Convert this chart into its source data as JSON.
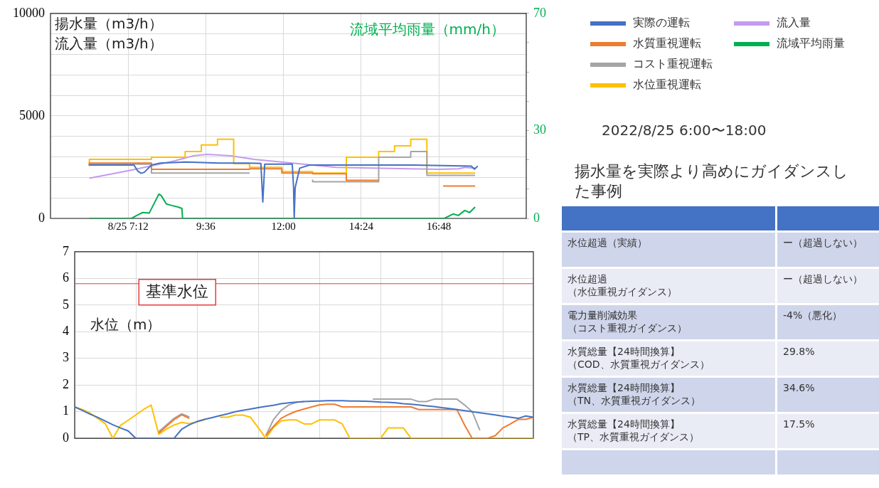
{
  "chart_data": [
    {
      "type": "line",
      "ylabel": "揚水量（m3/h）流入量（m3/h）",
      "y2label": "流域平均雨量（mm/h）",
      "xlim": [
        4.8,
        19.5
      ],
      "xticks": [
        {
          "value": 7.2,
          "label": "8/25 7:12"
        },
        {
          "value": 9.6,
          "label": "9:36"
        },
        {
          "value": 12,
          "label": "12:00"
        },
        {
          "value": 14.4,
          "label": "14:24"
        },
        {
          "value": 16.8,
          "label": "16:48"
        }
      ],
      "ylim": [
        0,
        10000
      ],
      "yticks": [
        0,
        {
          "value": 1000,
          "label": null
        },
        {
          "value": 2000,
          "label": null
        },
        {
          "value": 3000,
          "label": null
        },
        {
          "value": 4000,
          "label": null
        },
        5000,
        {
          "value": 6000,
          "label": null
        },
        {
          "value": 7000,
          "label": null
        },
        {
          "value": 8000,
          "label": null
        },
        {
          "value": 9000,
          "label": null
        },
        10000
      ],
      "y2lim": [
        0,
        70
      ],
      "y2ticks": [
        0,
        {
          "value": 10,
          "label": null
        },
        {
          "value": 20,
          "label": null
        },
        30,
        {
          "value": 40,
          "label": null
        },
        {
          "value": 50,
          "label": null
        },
        {
          "value": 60,
          "label": null
        },
        70
      ],
      "grid": true,
      "legend": "right",
      "marker": "none",
      "line_style": "solid",
      "series": [
        {
          "name": "実際の運転",
          "color": "#4472c4",
          "x": [
            6,
            7.38,
            7.5,
            7.6,
            7.7,
            7.92,
            8.19,
            9,
            10,
            10.9,
            11.3,
            11.36,
            11.42,
            12.27,
            12.31,
            12.33,
            12.36,
            12.5,
            12.8,
            14,
            16,
            17.8,
            17.9,
            18
          ],
          "values": [
            2600,
            2600,
            2300,
            2200,
            2250,
            2600,
            2700,
            2750,
            2700,
            2700,
            2680,
            800,
            2650,
            2650,
            1500,
            0,
            1500,
            2450,
            2600,
            2600,
            2600,
            2550,
            2400,
            2550
          ]
        },
        {
          "name": "水質重視運転",
          "type": "step",
          "color": "#ed7d31",
          "x": [
            6,
            7.92,
            10.95,
            11.95,
            12.9,
            13.94,
            14.94,
            15.93,
            16.93,
            17.92
          ],
          "values": [
            2560,
            2700,
            2390,
            2420,
            2210,
            2180,
            1860,
            null,
            1580,
            1580
          ]
        },
        {
          "name": "コスト重視運転",
          "type": "step",
          "color": "#a5a5a5",
          "x": [
            6,
            7.92,
            10.95,
            11.95,
            12.9,
            14.94,
            15.93,
            16.43,
            16.93,
            17.92
          ],
          "values": [
            2560,
            2650,
            2210,
            null,
            1890,
            1790,
            2980,
            3260,
            2100,
            2100
          ]
        },
        {
          "name": "水位重視運転",
          "type": "step",
          "color": "#ffc000",
          "x": [
            6,
            7.92,
            8.96,
            9.46,
            9.96,
            10.46,
            10.95,
            11.95,
            12.9,
            13.94,
            14.94,
            15.43,
            15.93,
            16.43,
            16.93,
            17.92
          ],
          "values": [
            2600,
            2880,
            2980,
            3260,
            3580,
            3860,
            2670,
            2490,
            2280,
            2210,
            2980,
            3260,
            3540,
            3860,
            2210,
            2210
          ]
        },
        {
          "name": "流入量",
          "color": "#c39bef",
          "x": [
            6,
            7.29,
            8.65,
            9.2,
            9.64,
            10.37,
            11.09,
            12.27,
            13.62,
            14.98,
            16.79,
            17.42,
            17.6,
            17.92
          ],
          "values": [
            1960,
            2350,
            2810,
            3050,
            3120,
            3050,
            2880,
            2700,
            2490,
            2450,
            2390,
            2420,
            2490,
            2450
          ]
        },
        {
          "name": "流域平均雨量",
          "color": "#00b050",
          "axis": "y2",
          "x": [
            6,
            7.3,
            7.55,
            7.65,
            7.85,
            7.97,
            8.15,
            8.22,
            8.38,
            8.55,
            8.74,
            8.86,
            8.88,
            16.97,
            17.24,
            17.4,
            17.6,
            17.75,
            17.92
          ],
          "values": [
            0,
            0,
            1.5,
            2.0,
            1.8,
            4.4,
            8.3,
            7.8,
            4.9,
            4.4,
            3.9,
            3.4,
            0,
            0,
            1.5,
            1.0,
            2.7,
            2.0,
            3.9
          ]
        }
      ]
    },
    {
      "type": "line",
      "ylabel": "水位（m）",
      "ylim": [
        0,
        7
      ],
      "yticks": [
        0,
        1,
        2,
        3,
        4,
        5,
        6,
        7
      ],
      "tick_labels": "y",
      "grid": true,
      "marker": "none",
      "line_style": "solid",
      "categories": [
        null,
        null,
        null,
        null,
        null,
        null,
        null,
        null,
        null,
        null,
        null,
        null,
        null,
        null,
        null,
        null,
        null,
        null,
        null,
        null,
        null,
        null,
        null,
        null,
        null,
        null,
        null,
        null,
        null,
        null,
        null,
        null,
        null,
        null,
        null,
        null,
        null,
        null,
        null,
        null,
        null,
        null,
        null,
        null,
        null,
        null,
        null,
        null,
        null,
        null,
        null,
        null,
        null,
        null,
        null,
        null,
        null,
        null,
        null,
        null,
        null
      ],
      "ref_lines": [
        {
          "axis": "y",
          "value": 5.8,
          "label": "基準水位",
          "color": "#e03c3c"
        }
      ],
      "series": [
        {
          "color": "#4472c4",
          "values": [
            1.18,
            1.05,
            0.91,
            0.79,
            0.65,
            0.51,
            0.39,
            0.28,
            0,
            0,
            0,
            0,
            0,
            0,
            0.34,
            0.51,
            0.63,
            0.71,
            0.78,
            0.85,
            0.92,
            1.0,
            1.05,
            1.1,
            1.15,
            1.2,
            1.24,
            1.3,
            1.33,
            1.36,
            1.38,
            1.39,
            1.4,
            1.41,
            1.41,
            1.41,
            1.4,
            1.4,
            1.39,
            1.38,
            1.36,
            1.35,
            1.33,
            1.3,
            1.28,
            1.25,
            1.22,
            1.19,
            1.15,
            1.12,
            1.08,
            1.04,
            1.0,
            0.96,
            0.92,
            0.88,
            0.83,
            0.79,
            0.75,
            0.84,
            0.79
          ]
        },
        {
          "color": "#ed7d31",
          "values": [
            null,
            null,
            null,
            null,
            null,
            null,
            null,
            null,
            null,
            null,
            null,
            0.2,
            0.45,
            0.7,
            0.88,
            0.75,
            null,
            null,
            null,
            null,
            null,
            null,
            null,
            null,
            null,
            0.1,
            0.45,
            0.75,
            0.9,
            1.02,
            1.1,
            1.18,
            1.25,
            1.28,
            1.28,
            1.18,
            1.18,
            1.18,
            1.18,
            1.18,
            1.18,
            1.18,
            1.18,
            1.18,
            1.18,
            1.08,
            1.08,
            1.08,
            1.08,
            1.08,
            1.08,
            0.5,
            0,
            0,
            0,
            0.1,
            0.39,
            0.54,
            0.71,
            0.71,
            0.79
          ]
        },
        {
          "color": "#a5a5a5",
          "values": [
            null,
            null,
            null,
            null,
            null,
            null,
            null,
            null,
            null,
            null,
            null,
            0.25,
            0.5,
            0.75,
            0.92,
            0.8,
            null,
            null,
            null,
            null,
            null,
            null,
            null,
            null,
            null,
            0.1,
            0.7,
            1.05,
            1.25,
            1.35,
            1.38,
            null,
            null,
            null,
            null,
            null,
            null,
            null,
            null,
            1.47,
            1.47,
            1.47,
            1.47,
            1.47,
            1.47,
            1.38,
            1.38,
            1.47,
            1.47,
            1.47,
            1.47,
            1.25,
            1.0,
            0.3,
            null,
            null,
            null,
            null,
            null,
            null,
            null
          ]
        },
        {
          "color": "#ffc000",
          "values": [
            1.18,
            1.08,
            0.95,
            0.75,
            0.55,
            0,
            0.49,
            0.68,
            0.88,
            1.08,
            1.25,
            0.15,
            0.35,
            0.5,
            0.6,
            0.55,
            0.62,
            0.7,
            null,
            0.79,
            0.79,
            0.87,
            0.87,
            0.79,
            0.4,
            0,
            0.4,
            0.65,
            0.69,
            0.69,
            0.54,
            0.54,
            0.69,
            0.69,
            0.69,
            0.54,
            0,
            0,
            0,
            0,
            0,
            0.39,
            0.39,
            0.39,
            0,
            0,
            0,
            0,
            0,
            0,
            0,
            0,
            0,
            0,
            0,
            0,
            0,
            0,
            0,
            0,
            0
          ]
        }
      ]
    },
    {
      "type": "other",
      "subtitle": "2022/8/25 6:00〜18:00",
      "title": "揚水量を実際より高めにガイダンスした事例",
      "annotations": [
        "水位超過（実績）",
        "ー（超過しない）",
        "水位超過（水位重視ガイダンス）",
        "ー（超過しない）",
        "電力量削減効果（コスト重視ガイダンス）",
        "-4%（悪化）",
        "水質総量【24時間換算】（COD、水質重視ガイダンス）",
        "29.8%",
        "水質総量【24時間換算】（TN、水質重視ガイダンス）",
        "34.6%",
        "水質総量【24時間換算】（TP、水質重視ガイダンス）",
        "17.5%"
      ]
    }
  ]
}
